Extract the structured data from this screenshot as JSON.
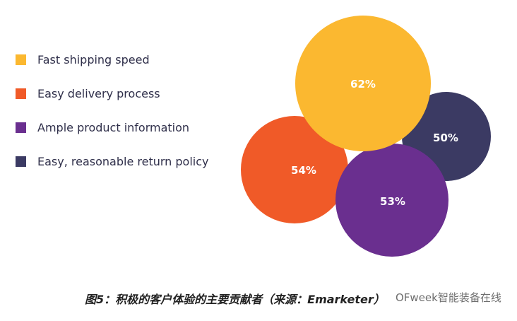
{
  "chart_data": {
    "type": "bubble",
    "series": [
      {
        "name": "Fast shipping speed",
        "value": 62,
        "label": "62%",
        "color": "#FBB830"
      },
      {
        "name": "Easy delivery process",
        "value": 54,
        "label": "54%",
        "color": "#F05A28"
      },
      {
        "name": "Ample product information",
        "value": 53,
        "label": "53%",
        "color": "#6A2F8F"
      },
      {
        "name": "Easy, reasonable return policy",
        "value": 50,
        "label": "50%",
        "color": "#3B3A63"
      }
    ],
    "legend_position": "left"
  },
  "caption": "图5：积极的客户体验的主要贡献者（来源：Emarketer）",
  "watermark": "OFweek智能装备在线"
}
